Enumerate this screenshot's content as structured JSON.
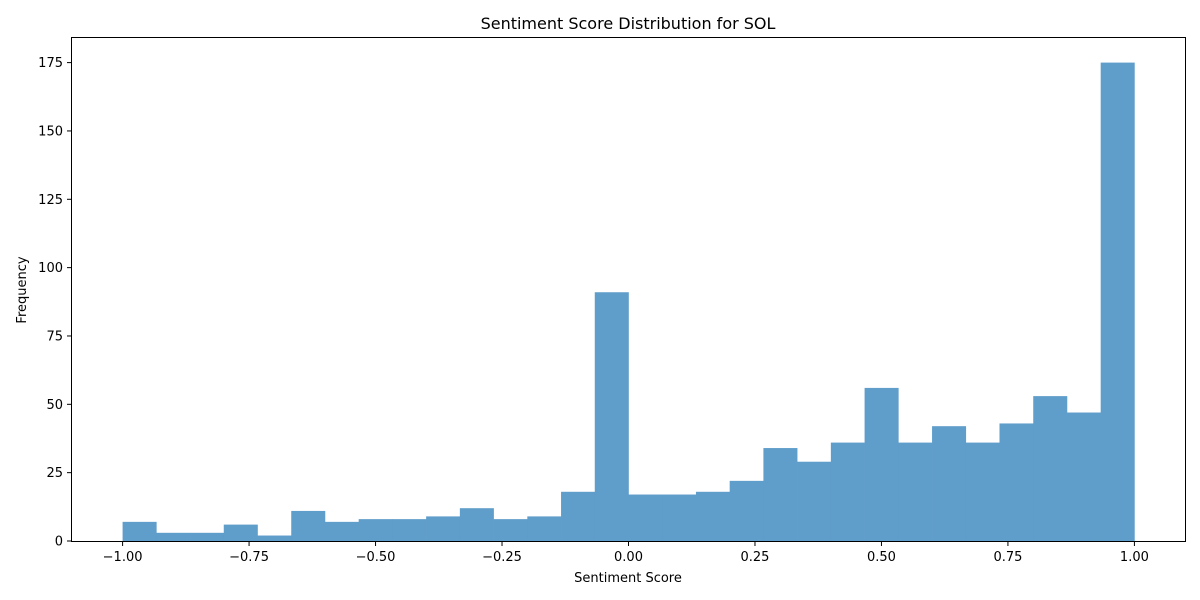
{
  "chart_data": {
    "type": "bar",
    "title": "Sentiment Score Distribution for SOL",
    "xlabel": "Sentiment Score",
    "ylabel": "Frequency",
    "bin_start": -1.0,
    "bin_end": 1.0,
    "values": [
      7,
      3,
      3,
      6,
      2,
      11,
      7,
      8,
      8,
      9,
      12,
      8,
      9,
      18,
      91,
      17,
      17,
      18,
      22,
      34,
      29,
      36,
      56,
      36,
      42,
      36,
      43,
      53,
      47,
      175
    ],
    "xlim": [
      -1.1,
      1.1
    ],
    "ylim": [
      0,
      184
    ],
    "x_ticks": [
      -1.0,
      -0.75,
      -0.5,
      -0.25,
      0.0,
      0.25,
      0.5,
      0.75,
      1.0
    ],
    "x_tick_labels": [
      "−1.00",
      "−0.75",
      "−0.50",
      "−0.25",
      "0.00",
      "0.25",
      "0.50",
      "0.75",
      "1.00"
    ],
    "y_ticks": [
      0,
      25,
      50,
      75,
      100,
      125,
      150,
      175
    ],
    "y_tick_labels": [
      "0",
      "25",
      "50",
      "75",
      "100",
      "125",
      "150",
      "175"
    ],
    "bar_color": "#5f9dca",
    "grid": false
  }
}
